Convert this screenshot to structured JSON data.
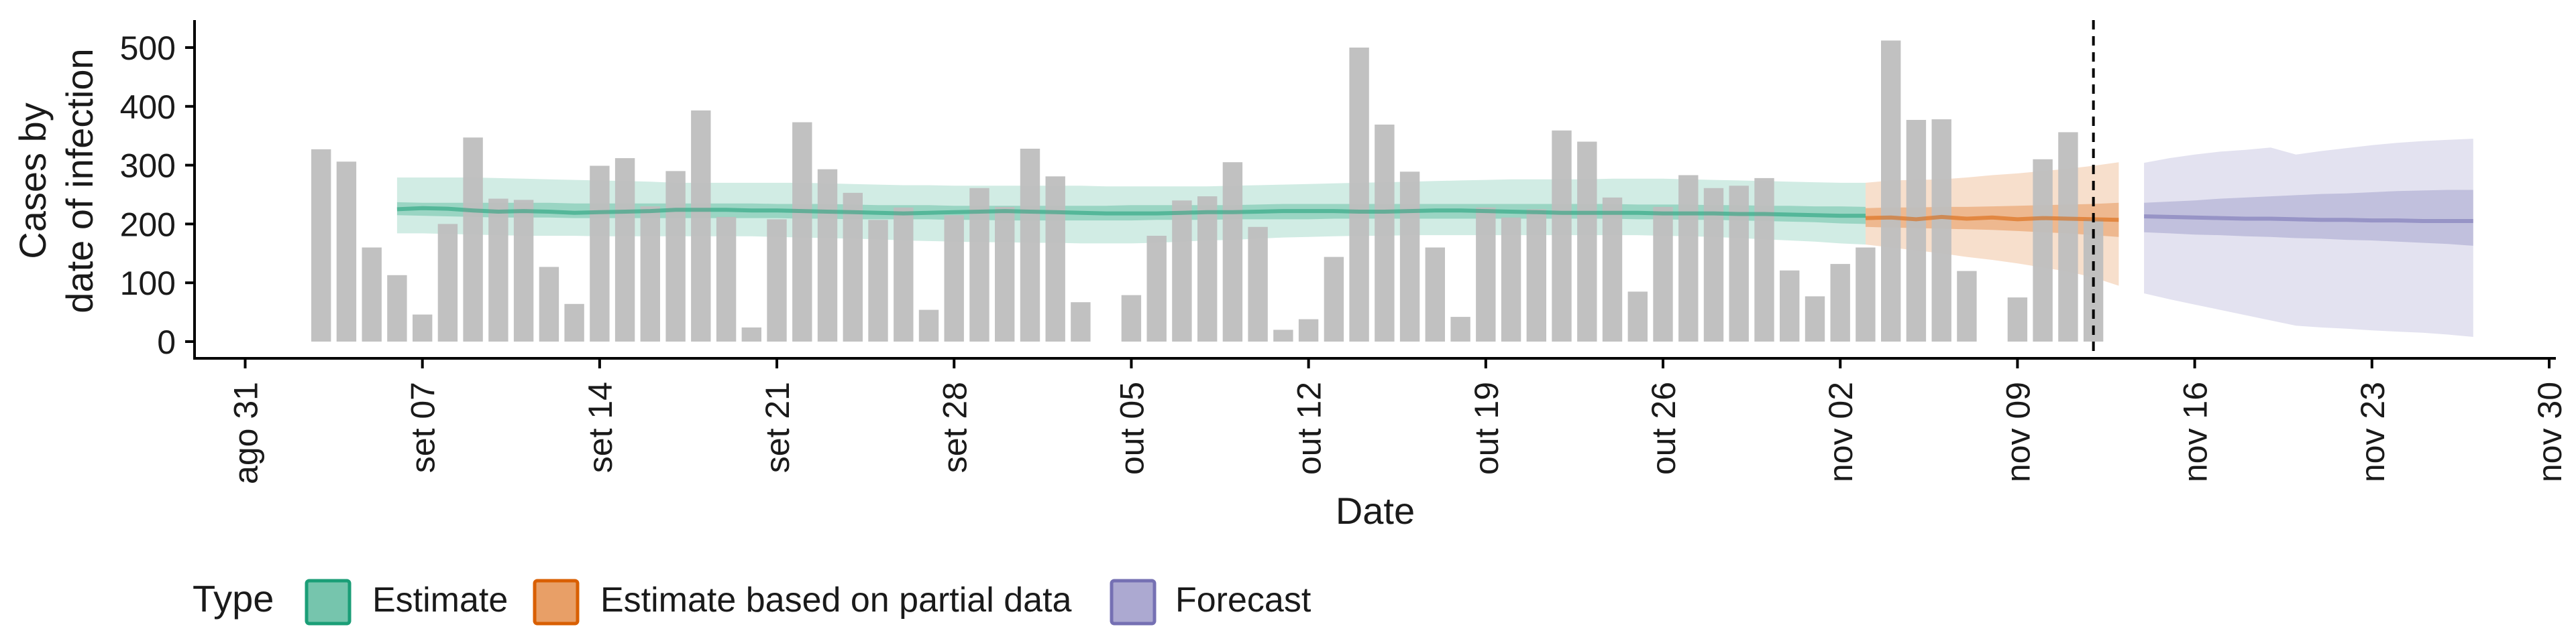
{
  "chart_data": {
    "type": "bar",
    "xlabel": "Date",
    "ylabel_lines": [
      "Cases by",
      "date of infection"
    ],
    "ylim": [
      0,
      550
    ],
    "yticks": [
      0,
      100,
      200,
      300,
      400,
      500
    ],
    "x_range": [
      "2020-08-29",
      "2020-11-30"
    ],
    "x_ticks": [
      {
        "date": "2020-08-31",
        "label": "ago 31"
      },
      {
        "date": "2020-09-07",
        "label": "set 07"
      },
      {
        "date": "2020-09-14",
        "label": "set 14"
      },
      {
        "date": "2020-09-21",
        "label": "set 21"
      },
      {
        "date": "2020-09-28",
        "label": "set 28"
      },
      {
        "date": "2020-10-05",
        "label": "out 05"
      },
      {
        "date": "2020-10-12",
        "label": "out 12"
      },
      {
        "date": "2020-10-19",
        "label": "out 19"
      },
      {
        "date": "2020-10-26",
        "label": "out 26"
      },
      {
        "date": "2020-11-02",
        "label": "nov 02"
      },
      {
        "date": "2020-11-09",
        "label": "nov 09"
      },
      {
        "date": "2020-11-16",
        "label": "nov 16"
      },
      {
        "date": "2020-11-23",
        "label": "nov 23"
      },
      {
        "date": "2020-11-30",
        "label": "nov 30"
      }
    ],
    "bars": {
      "start_date": "2020-09-03",
      "values": [
        327,
        306,
        160,
        113,
        46,
        200,
        347,
        243,
        241,
        127,
        64,
        299,
        312,
        230,
        290,
        393,
        212,
        24,
        208,
        373,
        293,
        253,
        207,
        228,
        54,
        215,
        261,
        229,
        328,
        281,
        67,
        0,
        79,
        180,
        240,
        247,
        305,
        195,
        20,
        38,
        144,
        500,
        369,
        289,
        160,
        42,
        228,
        211,
        225,
        359,
        340,
        245,
        85,
        229,
        283,
        261,
        265,
        278,
        121,
        77,
        132,
        160,
        512,
        377,
        378,
        120,
        0,
        75,
        310,
        356,
        208
      ],
      "color": "#bebebe"
    },
    "vline": {
      "date": "2020-11-12",
      "style": "dashed"
    },
    "series": [
      {
        "name": "Estimate",
        "color": "#1b9e77",
        "x_start": "2020-09-06",
        "x_end": "2020-11-03",
        "median": [
          225,
          227,
          226,
          223,
          221,
          222,
          221,
          219,
          220,
          221,
          222,
          224,
          224,
          224,
          223,
          223,
          222,
          221,
          220,
          219,
          218,
          219,
          220,
          221,
          222,
          221,
          220,
          219,
          218,
          218,
          218,
          219,
          220,
          220,
          221,
          222,
          222,
          222,
          221,
          221,
          222,
          223,
          223,
          222,
          221,
          220,
          219,
          219,
          219,
          219,
          218,
          218,
          218,
          217,
          217,
          216,
          215,
          214,
          214
        ],
        "lower_50": [
          215,
          214,
          213,
          212,
          211,
          211,
          211,
          210,
          210,
          210,
          210,
          210,
          210,
          210,
          210,
          210,
          209,
          209,
          208,
          208,
          208,
          208,
          207,
          207,
          206,
          206,
          206,
          206,
          206,
          206,
          207,
          207,
          207,
          208,
          208,
          208,
          208,
          209,
          209,
          209,
          209,
          209,
          209,
          209,
          209,
          209,
          209,
          209,
          209,
          208,
          208,
          207,
          207,
          206,
          205,
          204,
          203,
          201,
          200
        ],
        "upper_50": [
          237,
          236,
          236,
          236,
          236,
          236,
          236,
          235,
          235,
          235,
          235,
          235,
          235,
          235,
          235,
          234,
          234,
          234,
          233,
          232,
          232,
          232,
          231,
          231,
          231,
          231,
          231,
          231,
          231,
          232,
          232,
          232,
          232,
          232,
          233,
          234,
          234,
          234,
          234,
          234,
          234,
          234,
          234,
          234,
          234,
          234,
          234,
          234,
          234,
          233,
          233,
          233,
          232,
          232,
          231,
          231,
          230,
          230,
          229
        ],
        "lower_90": [
          184,
          184,
          183,
          182,
          181,
          180,
          180,
          180,
          179,
          179,
          179,
          179,
          179,
          179,
          179,
          178,
          177,
          176,
          175,
          174,
          172,
          171,
          170,
          169,
          169,
          168,
          168,
          167,
          167,
          167,
          168,
          170,
          172,
          173,
          175,
          177,
          178,
          179,
          180,
          180,
          181,
          181,
          181,
          181,
          181,
          181,
          181,
          181,
          181,
          181,
          180,
          179,
          178,
          176,
          174,
          172,
          170,
          167,
          165
        ],
        "upper_90": [
          279,
          279,
          279,
          279,
          278,
          277,
          276,
          275,
          274,
          273,
          272,
          270,
          270,
          270,
          270,
          270,
          270,
          269,
          268,
          267,
          266,
          266,
          265,
          265,
          265,
          265,
          265,
          265,
          264,
          264,
          264,
          264,
          264,
          265,
          266,
          267,
          268,
          269,
          270,
          271,
          272,
          273,
          274,
          275,
          276,
          276,
          276,
          276,
          277,
          277,
          277,
          276,
          275,
          274,
          273,
          272,
          271,
          270,
          270
        ]
      },
      {
        "name": "Estimate based on partial data",
        "color": "#d95f02",
        "x_start": "2020-11-03",
        "x_end": "2020-11-13",
        "median": [
          210,
          211,
          208,
          212,
          209,
          211,
          208,
          210,
          209,
          208,
          207
        ],
        "lower_50": [
          195,
          194,
          193,
          192,
          191,
          190,
          188,
          186,
          184,
          181,
          178
        ],
        "upper_50": [
          227,
          228,
          228,
          229,
          229,
          230,
          231,
          232,
          233,
          234,
          236
        ],
        "lower_90": [
          165,
          160,
          155,
          150,
          144,
          139,
          133,
          126,
          119,
          109,
          95
        ],
        "upper_90": [
          270,
          274,
          275,
          276,
          279,
          283,
          286,
          290,
          294,
          299,
          305
        ]
      },
      {
        "name": "Forecast",
        "color": "#7570b3",
        "x_start": "2020-11-14",
        "x_end": "2020-11-27",
        "median": [
          213,
          212,
          211,
          210,
          209,
          209,
          208,
          207,
          207,
          206,
          206,
          205,
          205,
          205
        ],
        "lower_50": [
          186,
          184,
          182,
          181,
          179,
          178,
          176,
          175,
          173,
          172,
          170,
          168,
          166,
          163
        ],
        "upper_50": [
          236,
          238,
          240,
          243,
          245,
          247,
          249,
          251,
          252,
          254,
          256,
          257,
          258,
          258
        ],
        "lower_90": [
          82,
          72,
          63,
          54,
          45,
          36,
          27,
          24,
          22,
          19,
          17,
          15,
          12,
          8
        ],
        "upper_90": [
          304,
          312,
          318,
          323,
          326,
          330,
          318,
          324,
          329,
          334,
          338,
          341,
          343,
          345
        ]
      }
    ],
    "legend": {
      "title": "Type",
      "position": "bottom-left",
      "items": [
        {
          "label": "Estimate",
          "color": "#1b9e77"
        },
        {
          "label": "Estimate based on partial data",
          "color": "#d95f02"
        },
        {
          "label": "Forecast",
          "color": "#7570b3"
        }
      ]
    }
  }
}
